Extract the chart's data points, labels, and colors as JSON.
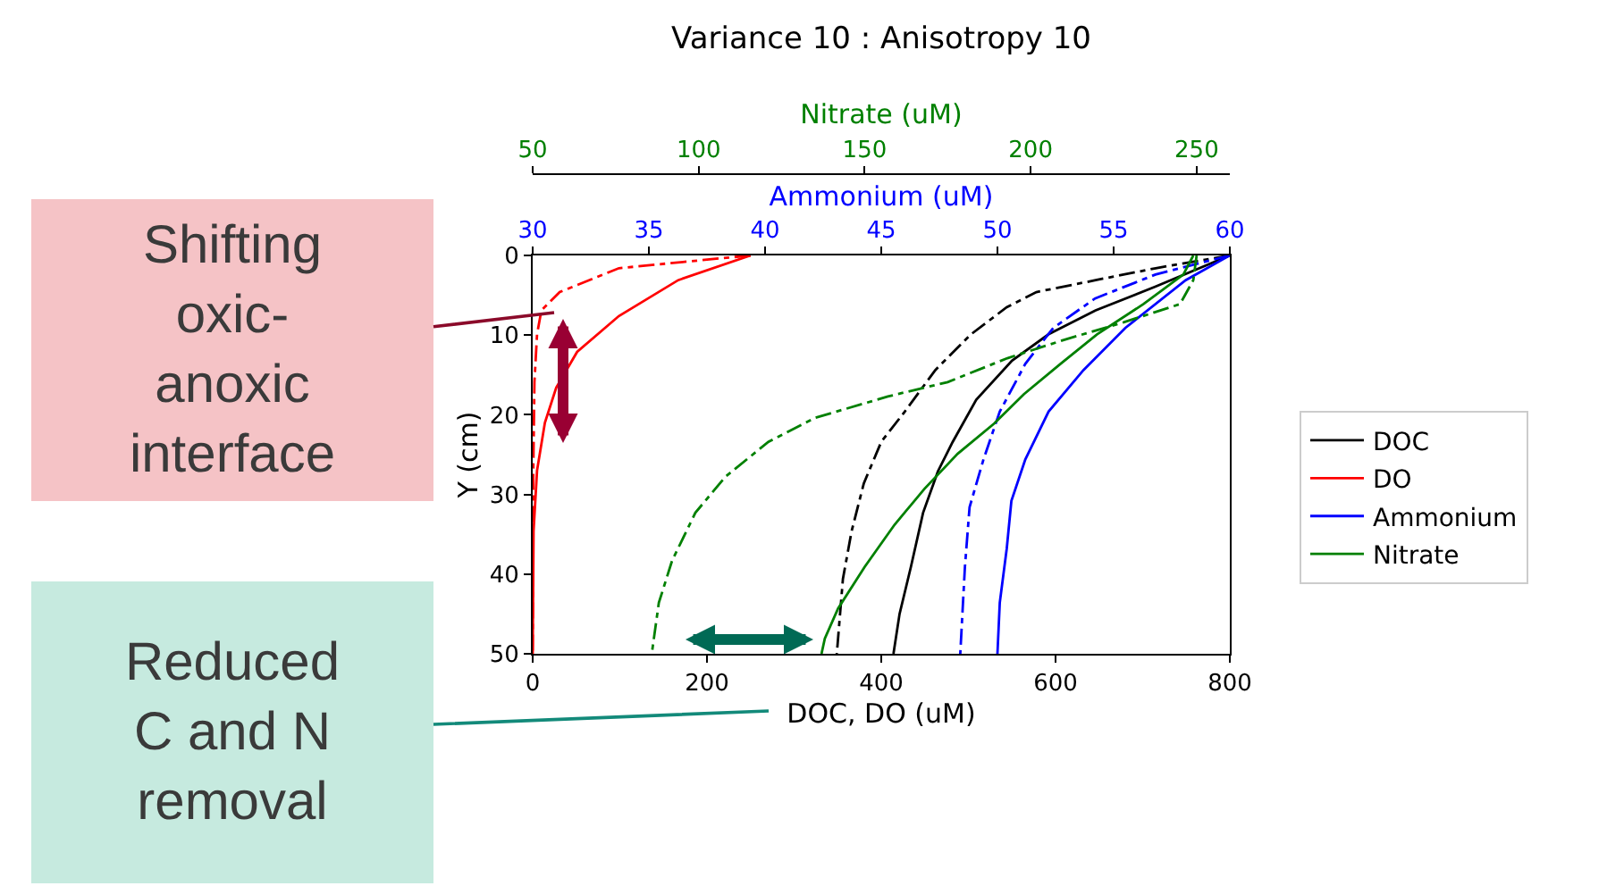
{
  "chart_data": [
    {
      "type": "line",
      "title": "Variance 10 : Anisotropy 10",
      "xlabel": "DOC, DO (uM)",
      "ylabel": "Y (cm)",
      "x2label": "Ammonium (uM)",
      "xlim": [
        0,
        800
      ],
      "xticks": [
        0,
        200,
        400,
        600,
        800
      ],
      "x2lim": [
        30,
        60
      ],
      "x2ticks": [
        30,
        35,
        40,
        45,
        50,
        55,
        60
      ],
      "ylim": [
        50,
        0
      ],
      "yticks": [
        0,
        10,
        20,
        30,
        40,
        50
      ],
      "legend": "right",
      "marker": "none",
      "series": [
        {
          "name": "DOC",
          "color": "#000000",
          "line_style": "solid",
          "x": [
            800,
            715,
            646,
            592,
            550,
            509,
            482,
            465,
            448,
            434,
            421,
            414
          ],
          "values": [
            0,
            3.9,
            6.9,
            9.9,
            13.2,
            18.1,
            23.4,
            27.1,
            32.3,
            39.1,
            45,
            50
          ]
        },
        {
          "name": "DO",
          "color": "#ff0000",
          "line_style": "solid",
          "x": [
            250,
            167,
            99,
            51,
            27,
            14,
            5,
            1,
            0
          ],
          "values": [
            0,
            3.1,
            7.6,
            12.1,
            16.6,
            21,
            27,
            34.6,
            50
          ]
        },
        {
          "name": "Ammonium",
          "color": "#0000ff",
          "line_style": "solid",
          "axis": "x2",
          "x": [
            60,
            58.1,
            55.5,
            53.7,
            52.2,
            51.2,
            50.6,
            50.4,
            50.1,
            50.0
          ],
          "values": [
            0,
            3.1,
            9.1,
            14.4,
            19.6,
            25.6,
            30.8,
            36.8,
            43.6,
            50
          ]
        },
        {
          "color": "#000000",
          "line_style": "dashdot",
          "x": [
            800,
            715,
            646,
            578,
            544,
            503,
            462,
            427,
            400,
            380,
            366,
            356,
            349
          ],
          "values": [
            0,
            1.6,
            3.1,
            4.6,
            6.5,
            9.9,
            14.4,
            19.6,
            23.4,
            28.6,
            34.6,
            40.6,
            50
          ]
        },
        {
          "color": "#ff0000",
          "line_style": "dashdot",
          "x": [
            250,
            99,
            31,
            10,
            5,
            2,
            0.7,
            0
          ],
          "values": [
            0,
            1.6,
            4.6,
            6.9,
            9.9,
            15.9,
            27,
            50
          ]
        },
        {
          "color": "#0000ff",
          "line_style": "dashdot",
          "axis": "x2",
          "x": [
            60,
            56.8,
            54.2,
            52.4,
            51.2,
            50.1,
            49.4,
            48.8,
            48.6,
            48.4
          ],
          "values": [
            0,
            2.4,
            5.4,
            9.1,
            13.6,
            19.6,
            25.6,
            31.6,
            39.1,
            50
          ]
        }
      ],
      "annotations": [
        "Shifting oxic-anoxic interface",
        "Reduced C and N removal"
      ]
    },
    {
      "type": "line",
      "xlabel": "Nitrate (uM)",
      "xlim": [
        50,
        260
      ],
      "xticks": [
        50,
        100,
        150,
        200,
        250
      ],
      "ylim": [
        50,
        0
      ],
      "yticks": [
        0,
        10,
        20,
        30,
        40,
        50
      ],
      "tick_labels": "x",
      "marker": "none",
      "series": [
        {
          "name": "Nitrate",
          "color": "#008000",
          "line_style": "solid",
          "x": [
            249,
            246,
            234,
            220,
            209,
            198,
            189,
            178,
            168,
            159,
            150,
            142,
            138,
            137
          ],
          "values": [
            0,
            2.4,
            6.1,
            9.9,
            13.6,
            17.4,
            21.1,
            24.9,
            29.3,
            33.8,
            39.1,
            44.3,
            48.1,
            50
          ]
        },
        {
          "color": "#008000",
          "line_style": "dashdot",
          "x": [
            250,
            249,
            245,
            228,
            210,
            193,
            175,
            157,
            135,
            121,
            108,
            99,
            92,
            88,
            86
          ],
          "values": [
            0,
            3.1,
            6.1,
            8.4,
            10.6,
            12.9,
            15.9,
            17.7,
            20.4,
            23.4,
            27.8,
            32.3,
            38.3,
            43.6,
            49.6
          ]
        }
      ]
    }
  ]
}
